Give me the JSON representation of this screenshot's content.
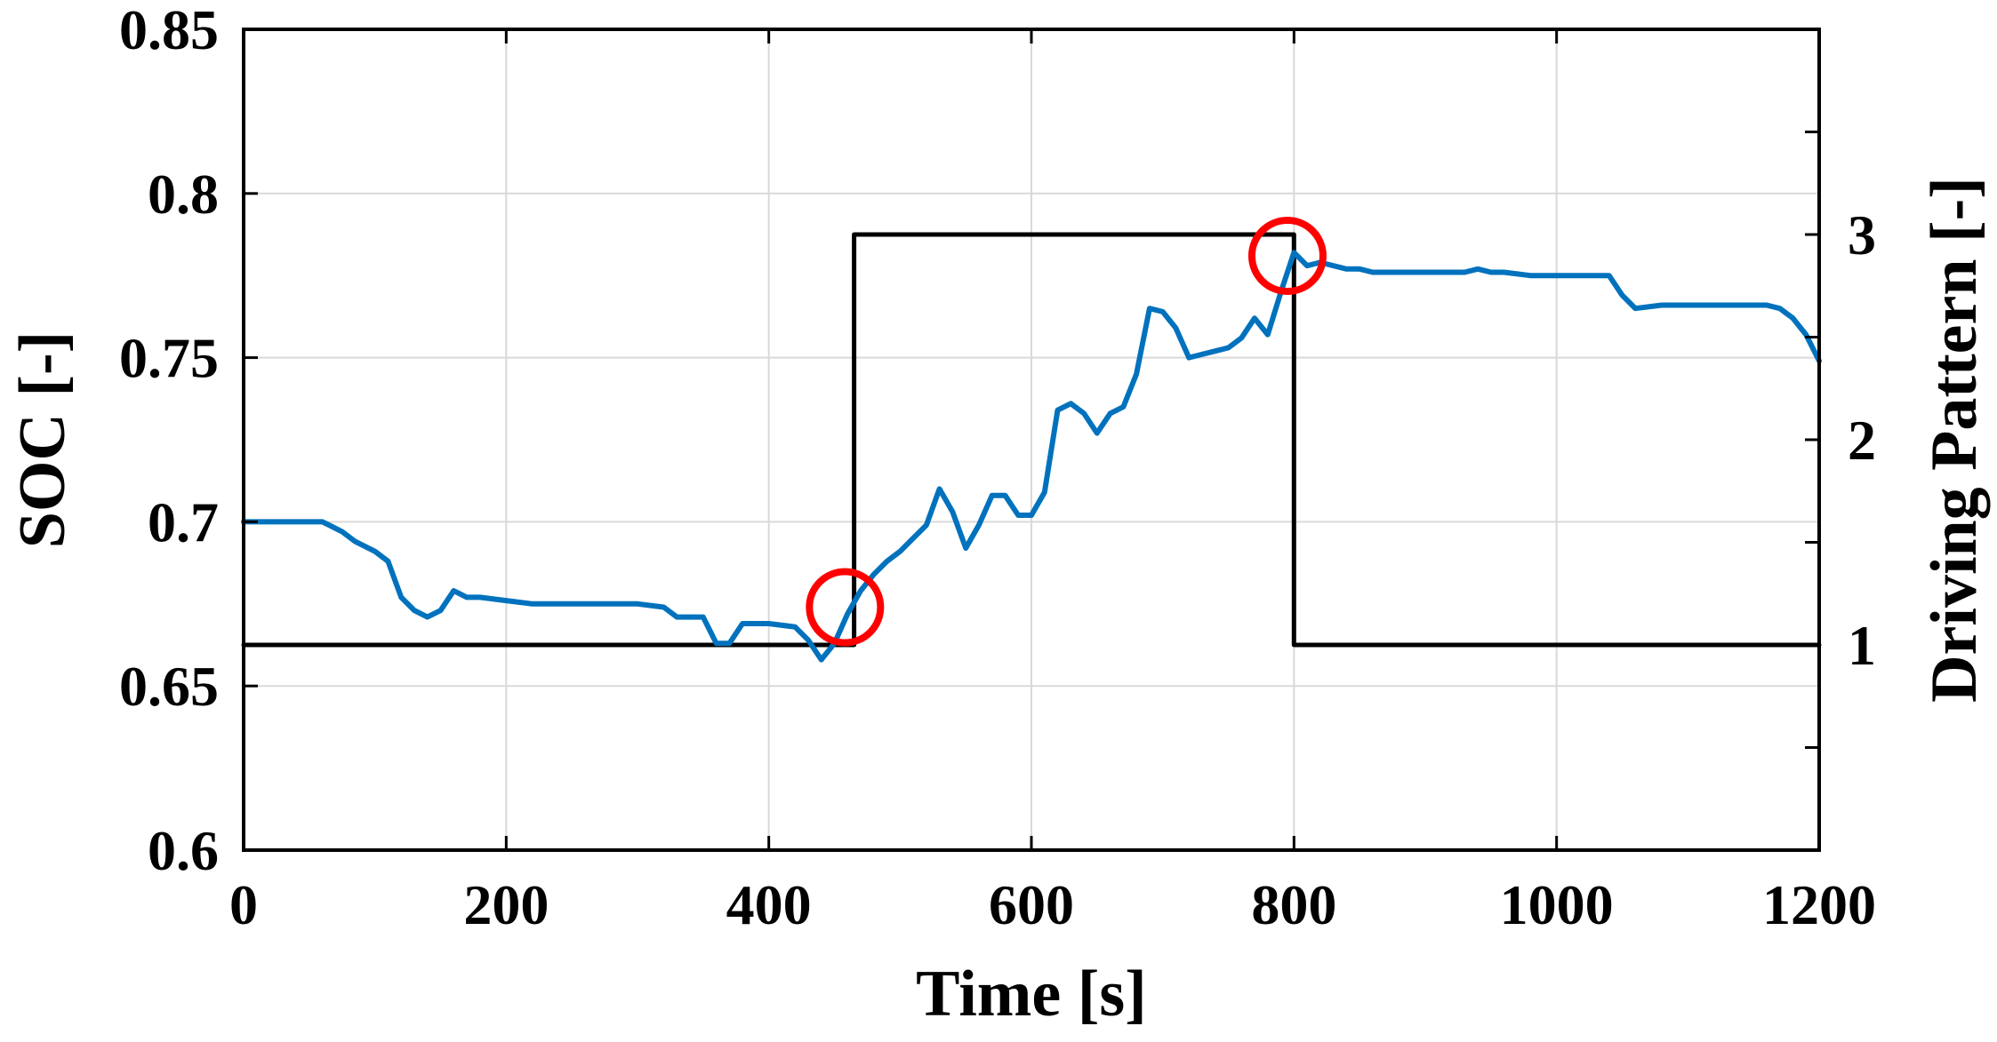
{
  "chart_data": {
    "type": "line",
    "title": "",
    "xlabel": "Time [s]",
    "ylabel": "SOC [-]",
    "ylabel_right": "Driving Pattern [-]",
    "xlim": [
      0,
      1200
    ],
    "ylim": [
      0.6,
      0.85
    ],
    "ylim_right": [
      0.0,
      4.0
    ],
    "x_ticks": [
      "0",
      "200",
      "400",
      "600",
      "800",
      "1000",
      "1200"
    ],
    "y_ticks": [
      "0.6",
      "0.65",
      "0.7",
      "0.75",
      "0.8",
      "0.85"
    ],
    "y_ticks_right": [
      "1",
      "2",
      "3"
    ],
    "grid": true,
    "series": [
      {
        "axis": "left",
        "color": "#0072BD",
        "x": [
          0,
          20,
          40,
          60,
          65,
          75,
          85,
          100,
          110,
          120,
          130,
          140,
          150,
          160,
          170,
          180,
          200,
          220,
          250,
          300,
          320,
          330,
          340,
          350,
          360,
          370,
          380,
          400,
          420,
          430,
          440,
          450,
          460,
          470,
          480,
          490,
          500,
          510,
          520,
          530,
          540,
          550,
          560,
          570,
          580,
          590,
          600,
          610,
          620,
          630,
          640,
          650,
          660,
          670,
          680,
          690,
          700,
          710,
          720,
          730,
          740,
          750,
          760,
          770,
          780,
          790,
          800,
          810,
          820,
          830,
          840,
          850,
          860,
          880,
          900,
          920,
          930,
          940,
          950,
          960,
          980,
          1000,
          1020,
          1040,
          1050,
          1060,
          1080,
          1100,
          1120,
          1140,
          1160,
          1170,
          1180,
          1190,
          1200
        ],
        "y": [
          0.7,
          0.7,
          0.7,
          0.7,
          0.699,
          0.697,
          0.694,
          0.691,
          0.688,
          0.677,
          0.673,
          0.671,
          0.673,
          0.679,
          0.677,
          0.677,
          0.676,
          0.675,
          0.675,
          0.675,
          0.674,
          0.671,
          0.671,
          0.671,
          0.663,
          0.663,
          0.669,
          0.669,
          0.668,
          0.664,
          0.658,
          0.663,
          0.672,
          0.679,
          0.684,
          0.688,
          0.691,
          0.695,
          0.699,
          0.71,
          0.703,
          0.692,
          0.699,
          0.708,
          0.708,
          0.702,
          0.702,
          0.709,
          0.734,
          0.736,
          0.733,
          0.727,
          0.733,
          0.735,
          0.745,
          0.765,
          0.764,
          0.759,
          0.75,
          0.751,
          0.752,
          0.753,
          0.756,
          0.762,
          0.757,
          0.77,
          0.782,
          0.778,
          0.779,
          0.778,
          0.777,
          0.777,
          0.776,
          0.776,
          0.776,
          0.776,
          0.776,
          0.777,
          0.776,
          0.776,
          0.775,
          0.775,
          0.775,
          0.775,
          0.769,
          0.765,
          0.766,
          0.766,
          0.766,
          0.766,
          0.766,
          0.765,
          0.762,
          0.757,
          0.749
        ]
      },
      {
        "axis": "right",
        "color": "#000000",
        "x": [
          0,
          465,
          465,
          800,
          800,
          1200
        ],
        "y": [
          1,
          1,
          3,
          3,
          1,
          1
        ]
      }
    ],
    "annotations": [
      {
        "shape": "circle",
        "color": "#ff0000",
        "x": 458,
        "y": 0.674
      },
      {
        "shape": "circle",
        "color": "#ff0000",
        "x": 795,
        "y": 0.781
      }
    ]
  }
}
